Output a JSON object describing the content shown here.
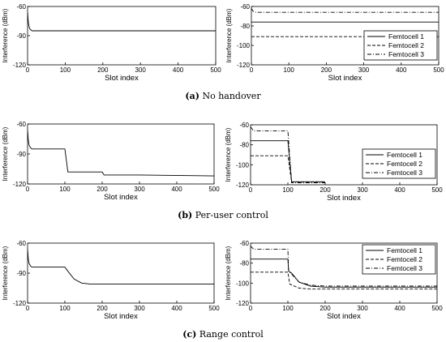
{
  "captions": [
    {
      "letter": "(a)",
      "text": "No handover"
    },
    {
      "letter": "(b)",
      "text": "Per-user control"
    },
    {
      "letter": "(c)",
      "text": "Range control"
    }
  ],
  "colors": {
    "line": "#000000",
    "axis": "#000000",
    "background": "#ffffff"
  },
  "chart_data": [
    {
      "type": "line",
      "panel": "a-left",
      "xlabel": "Slot index",
      "ylabel": "Interference (dBm)",
      "xlim": [
        0,
        500
      ],
      "ylim": [
        -120,
        -60
      ],
      "xticks": [
        "0",
        "100",
        "200",
        "300",
        "400",
        "500"
      ],
      "yticks": [
        "-60",
        "-90",
        "-120"
      ],
      "series": [
        {
          "style": "solid",
          "points": [
            [
              0,
              -66
            ],
            [
              2,
              -76
            ],
            [
              4,
              -81
            ],
            [
              6,
              -83
            ],
            [
              8,
              -84
            ],
            [
              12,
              -85
            ],
            [
              20,
              -85
            ],
            [
              500,
              -85
            ]
          ]
        }
      ]
    },
    {
      "type": "line",
      "panel": "a-right",
      "xlabel": "Slot index",
      "ylabel": "Interference (dBm)",
      "xlim": [
        0,
        500
      ],
      "ylim": [
        -120,
        -60
      ],
      "xticks": [
        "0",
        "100",
        "200",
        "300",
        "400",
        "500"
      ],
      "yticks": [
        "-60",
        "-80",
        "-100",
        "-120"
      ],
      "legend": "right",
      "series": [
        {
          "name": "Femtocell 1",
          "style": "solid",
          "points": [
            [
              0,
              -76
            ],
            [
              500,
              -76
            ]
          ]
        },
        {
          "name": "Femtocell 2",
          "style": "dashed",
          "points": [
            [
              0,
              -91
            ],
            [
              500,
              -91
            ]
          ]
        },
        {
          "name": "Femtocell 3",
          "style": "dashdot",
          "points": [
            [
              0,
              -62
            ],
            [
              5,
              -65
            ],
            [
              12,
              -66
            ],
            [
              500,
              -66
            ]
          ]
        }
      ]
    },
    {
      "type": "line",
      "panel": "b-left",
      "xlabel": "Slot index",
      "ylabel": "Interference (dBm)",
      "xlim": [
        0,
        500
      ],
      "ylim": [
        -120,
        -60
      ],
      "xticks": [
        "0",
        "100",
        "200",
        "300",
        "400",
        "500"
      ],
      "yticks": [
        "-60",
        "-90",
        "-120"
      ],
      "series": [
        {
          "style": "solid",
          "points": [
            [
              0,
              -66
            ],
            [
              2,
              -76
            ],
            [
              4,
              -81
            ],
            [
              8,
              -84
            ],
            [
              12,
              -85
            ],
            [
              100,
              -85
            ],
            [
              104,
              -96
            ],
            [
              108,
              -108
            ],
            [
              200,
              -108
            ],
            [
              205,
              -111
            ],
            [
              300,
              -111
            ],
            [
              500,
              -112
            ]
          ]
        }
      ]
    },
    {
      "type": "line",
      "panel": "b-right",
      "xlabel": "Slot index",
      "ylabel": "Interference (dBm)",
      "xlim": [
        0,
        500
      ],
      "ylim": [
        -120,
        -60
      ],
      "xticks": [
        "0",
        "100",
        "200",
        "300",
        "400",
        "500"
      ],
      "yticks": [
        "-60",
        "-80",
        "-100",
        "-120"
      ],
      "legend": "right",
      "series": [
        {
          "name": "Femtocell 1",
          "style": "solid",
          "points": [
            [
              0,
              -76
            ],
            [
              100,
              -76
            ],
            [
              110,
              -117
            ],
            [
              200,
              -117
            ]
          ]
        },
        {
          "name": "Femtocell 2",
          "style": "dashed",
          "points": [
            [
              0,
              -91
            ],
            [
              100,
              -91
            ],
            [
              110,
              -117
            ],
            [
              200,
              -117
            ]
          ]
        },
        {
          "name": "Femtocell 3",
          "style": "dashdot",
          "points": [
            [
              0,
              -62
            ],
            [
              8,
              -66
            ],
            [
              100,
              -66
            ],
            [
              110,
              -118
            ],
            [
              200,
              -118
            ]
          ]
        }
      ]
    },
    {
      "type": "line",
      "panel": "c-left",
      "xlabel": "Slot index",
      "ylabel": "Interference (dBm)",
      "xlim": [
        0,
        500
      ],
      "ylim": [
        -120,
        -60
      ],
      "xticks": [
        "0",
        "100",
        "200",
        "300",
        "400",
        "500"
      ],
      "yticks": [
        "-60",
        "-90",
        "-120"
      ],
      "series": [
        {
          "style": "solid",
          "points": [
            [
              0,
              -66
            ],
            [
              2,
              -76
            ],
            [
              4,
              -80
            ],
            [
              8,
              -83
            ],
            [
              12,
              -84
            ],
            [
              100,
              -84
            ],
            [
              110,
              -89
            ],
            [
              125,
              -96
            ],
            [
              145,
              -100
            ],
            [
              170,
              -101
            ],
            [
              500,
              -101
            ]
          ]
        }
      ]
    },
    {
      "type": "line",
      "panel": "c-right",
      "xlabel": "Slot index",
      "ylabel": "Interference (dBm)",
      "xlim": [
        0,
        500
      ],
      "ylim": [
        -120,
        -60
      ],
      "xticks": [
        "0",
        "100",
        "200",
        "300",
        "400",
        "500"
      ],
      "yticks": [
        "-60",
        "-80",
        "-100",
        "-120"
      ],
      "legend": "top-right",
      "series": [
        {
          "name": "Femtocell 1",
          "style": "solid",
          "points": [
            [
              0,
              -76
            ],
            [
              100,
              -76
            ],
            [
              102,
              -88
            ],
            [
              110,
              -90
            ],
            [
              130,
              -99
            ],
            [
              160,
              -103
            ],
            [
              200,
              -104
            ],
            [
              500,
              -104
            ]
          ]
        },
        {
          "name": "Femtocell 2",
          "style": "dashed",
          "points": [
            [
              0,
              -89
            ],
            [
              100,
              -89
            ],
            [
              105,
              -101
            ],
            [
              130,
              -105
            ],
            [
              160,
              -106
            ],
            [
              500,
              -106
            ]
          ]
        },
        {
          "name": "Femtocell 3",
          "style": "dashdot",
          "points": [
            [
              0,
              -63
            ],
            [
              8,
              -66
            ],
            [
              100,
              -66
            ],
            [
              102,
              -88
            ],
            [
              110,
              -91
            ],
            [
              130,
              -99
            ],
            [
              160,
              -102
            ],
            [
              200,
              -103
            ],
            [
              500,
              -103
            ]
          ]
        }
      ]
    }
  ]
}
